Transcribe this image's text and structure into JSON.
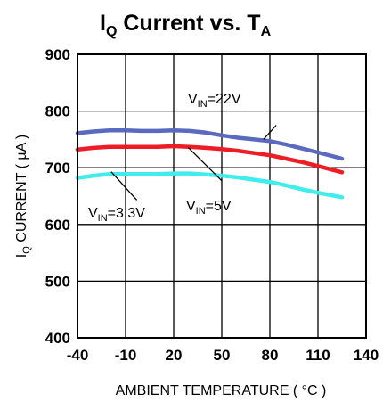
{
  "chart_data": {
    "type": "line",
    "title": {
      "main": "I",
      "sub": "Q",
      "mid": " Current vs. T",
      "sub2": "A"
    },
    "xlabel": "AMBIENT TEMPERATURE ( °C )",
    "ylabel": {
      "main": "I",
      "sub": "Q",
      "rest": " CURRENT ( µA )"
    },
    "xlim": [
      -40,
      140
    ],
    "ylim": [
      400,
      900
    ],
    "x_ticks": [
      "-40",
      "-10",
      "20",
      "50",
      "80",
      "110",
      "140"
    ],
    "y_ticks": [
      "400",
      "500",
      "600",
      "700",
      "800",
      "900"
    ],
    "grid": true,
    "series": [
      {
        "id": "vin22",
        "color": "#5a6abf",
        "x": [
          -40,
          -30,
          -20,
          -10,
          0,
          10,
          20,
          30,
          40,
          50,
          60,
          70,
          80,
          90,
          100,
          110,
          125
        ],
        "y": [
          761,
          764,
          766,
          766,
          765,
          765,
          766,
          765,
          762,
          757,
          753,
          750,
          747,
          741,
          734,
          727,
          716
        ]
      },
      {
        "id": "vin5",
        "color": "#ee1c24",
        "x": [
          -40,
          -30,
          -20,
          -10,
          0,
          10,
          20,
          30,
          40,
          50,
          60,
          70,
          80,
          90,
          100,
          110,
          125
        ],
        "y": [
          732,
          735,
          737,
          737,
          737,
          737,
          738,
          737,
          735,
          733,
          730,
          726,
          722,
          716,
          710,
          703,
          692
        ]
      },
      {
        "id": "vin33",
        "color": "#40ecec",
        "x": [
          -40,
          -30,
          -20,
          -10,
          0,
          10,
          20,
          30,
          40,
          50,
          60,
          70,
          80,
          90,
          100,
          110,
          125
        ],
        "y": [
          682,
          686,
          689,
          689,
          689,
          689,
          690,
          690,
          688,
          686,
          683,
          679,
          675,
          669,
          662,
          656,
          648
        ]
      }
    ],
    "annotations": [
      {
        "id": "vin22",
        "main": "V",
        "sub": "IN",
        "rest": "=22V"
      },
      {
        "id": "vin5",
        "main": "V",
        "sub": "IN",
        "rest": "=5V"
      },
      {
        "id": "vin33",
        "main": "V",
        "sub": "IN",
        "rest": "=3.3V"
      }
    ]
  }
}
